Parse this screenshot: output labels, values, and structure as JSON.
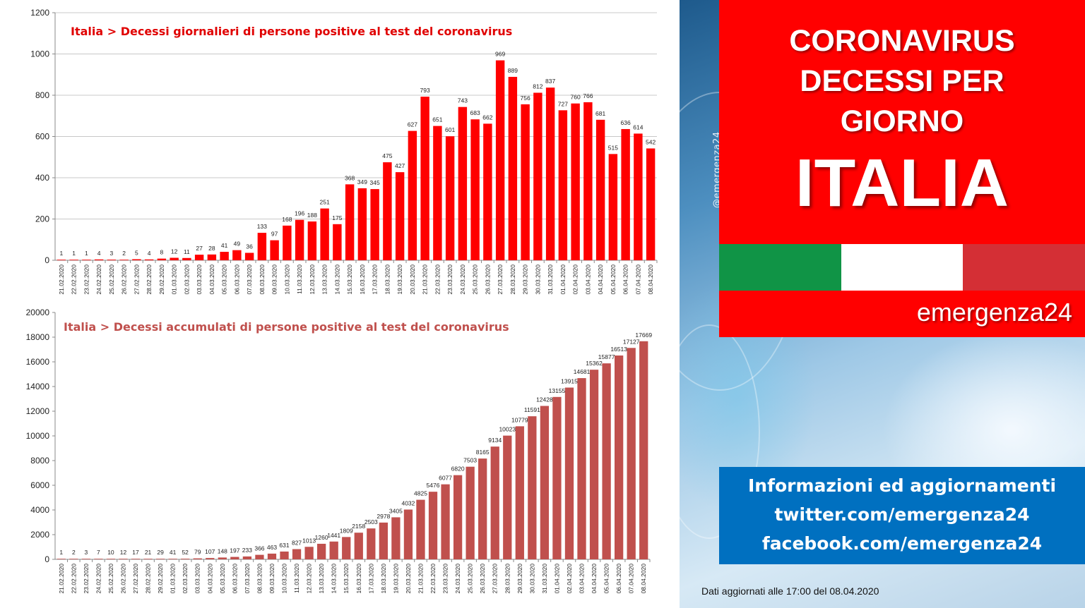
{
  "chart_data": [
    {
      "type": "bar",
      "title": "Italia > Decessi giornalieri di persone positive al test del coronavirus",
      "xlabel": "",
      "ylabel": "",
      "ylim": [
        0,
        1200
      ],
      "yticks": [
        0,
        200,
        400,
        600,
        800,
        1000,
        1200
      ],
      "grid": true,
      "color": "#ff0000",
      "title_color": "#e00000",
      "categories": [
        "21.02.2020",
        "22.02.2020",
        "23.02.2020",
        "24.02.2020",
        "25.02.2020",
        "26.02.2020",
        "27.02.2020",
        "28.02.2020",
        "29.02.2020",
        "01.03.2020",
        "02.03.2020",
        "03.03.2020",
        "04.03.2020",
        "05.03.2020",
        "06.03.2020",
        "07.03.2020",
        "08.03.2020",
        "09.03.2020",
        "10.03.2020",
        "11.03.2020",
        "12.03.2020",
        "13.03.2020",
        "14.03.2020",
        "15.03.2020",
        "16.03.2020",
        "17.03.2020",
        "18.03.2020",
        "19.03.2020",
        "20.03.2020",
        "21.03.2020",
        "22.03.2020",
        "23.03.2020",
        "24.03.2020",
        "25.03.2020",
        "26.03.2020",
        "27.03.2020",
        "28.03.2020",
        "29.03.2020",
        "30.03.2020",
        "31.03.2020",
        "01.04.2020",
        "02.04.2020",
        "03.04.2020",
        "04.04.2020",
        "05.04.2020",
        "06.04.2020",
        "07.04.2020",
        "08.04.2020"
      ],
      "values": [
        1,
        1,
        1,
        4,
        3,
        2,
        5,
        4,
        8,
        12,
        11,
        27,
        28,
        41,
        49,
        36,
        133,
        97,
        168,
        196,
        188,
        251,
        175,
        368,
        349,
        345,
        475,
        427,
        627,
        793,
        651,
        601,
        743,
        683,
        662,
        969,
        889,
        756,
        812,
        837,
        727,
        760,
        766,
        681,
        515,
        636,
        614,
        542
      ]
    },
    {
      "type": "bar",
      "title": "Italia > Decessi accumulati di persone positive al test del coronavirus",
      "xlabel": "",
      "ylabel": "",
      "ylim": [
        0,
        20000
      ],
      "yticks": [
        0,
        2000,
        4000,
        6000,
        8000,
        10000,
        12000,
        14000,
        16000,
        18000,
        20000
      ],
      "grid": false,
      "color": "#c0504d",
      "title_color": "#c0504d",
      "categories": [
        "21.02.2020",
        "22.02.2020",
        "23.02.2020",
        "24.02.2020",
        "25.02.2020",
        "26.02.2020",
        "27.02.2020",
        "28.02.2020",
        "29.02.2020",
        "01.03.2020",
        "02.03.2020",
        "03.03.2020",
        "04.03.2020",
        "05.03.2020",
        "06.03.2020",
        "07.03.2020",
        "08.03.2020",
        "09.03.2020",
        "10.03.2020",
        "11.03.2020",
        "12.03.2020",
        "13.03.2020",
        "14.03.2020",
        "15.03.2020",
        "16.03.2020",
        "17.03.2020",
        "18.03.2020",
        "19.03.2020",
        "20.03.2020",
        "21.03.2020",
        "22.03.2020",
        "23.03.2020",
        "24.03.2020",
        "25.03.2020",
        "26.03.2020",
        "27.03.2020",
        "28.03.2020",
        "29.03.2020",
        "30.03.2020",
        "31.03.2020",
        "01.04.2020",
        "02.04.2020",
        "03.04.2020",
        "04.04.2020",
        "05.04.2020",
        "06.04.2020",
        "07.04.2020",
        "08.04.2020"
      ],
      "values": [
        1,
        2,
        3,
        7,
        10,
        12,
        17,
        21,
        29,
        41,
        52,
        79,
        107,
        148,
        197,
        233,
        366,
        463,
        631,
        827,
        1013,
        1260,
        1441,
        1809,
        2158,
        2503,
        2978,
        3405,
        4032,
        4825,
        5476,
        6077,
        6820,
        7503,
        8165,
        9134,
        10023,
        10779,
        11591,
        12428,
        13155,
        13915,
        14681,
        15362,
        15877,
        16513,
        17127,
        17669
      ]
    }
  ],
  "header": {
    "line1": "CORONAVIRUS",
    "line2": "DECESSI PER",
    "line3": "GIORNO",
    "country": "ITALIA",
    "brand": "emergenza24",
    "handle": "@emergenza24",
    "flag_colors": [
      "#109446",
      "#ffffff",
      "#d42f35"
    ]
  },
  "info": {
    "line1": "Informazioni ed aggiornamenti",
    "line2": "twitter.com/emergenza24",
    "line3": "facebook.com/emergenza24"
  },
  "footer": {
    "text": "Dati aggiornati alle 17:00 del 08.04.2020"
  }
}
